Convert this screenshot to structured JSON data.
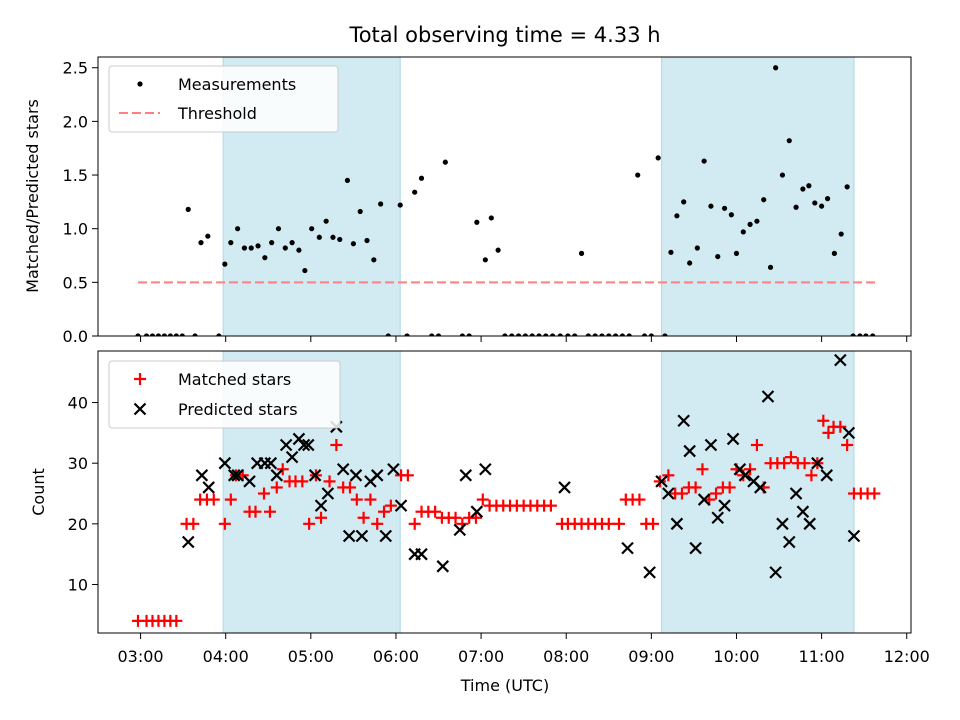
{
  "title": "Total observing time = 4.33 h",
  "x_axis": {
    "label": "Time (UTC)",
    "range_hours": [
      2.5,
      12.05
    ],
    "ticks": [
      {
        "v": 3,
        "label": "03:00"
      },
      {
        "v": 4,
        "label": "04:00"
      },
      {
        "v": 5,
        "label": "05:00"
      },
      {
        "v": 6,
        "label": "06:00"
      },
      {
        "v": 7,
        "label": "07:00"
      },
      {
        "v": 8,
        "label": "08:00"
      },
      {
        "v": 9,
        "label": "09:00"
      },
      {
        "v": 10,
        "label": "10:00"
      },
      {
        "v": 11,
        "label": "11:00"
      },
      {
        "v": 12,
        "label": "12:00"
      }
    ]
  },
  "shaded_intervals_hours": [
    [
      3.97,
      6.05
    ],
    [
      9.12,
      11.38
    ]
  ],
  "colors": {
    "shade": "#add8e6",
    "threshold": "#ff8080",
    "measurement": "#000000",
    "matched": "#ff0000",
    "predicted": "#000000"
  },
  "chart_data": [
    {
      "type": "scatter",
      "panel": "top",
      "ylabel": "Matched/Predicted stars",
      "ylim": [
        0,
        2.6
      ],
      "yticks": [
        {
          "v": 0,
          "label": "0.0"
        },
        {
          "v": 0.5,
          "label": "0.5"
        },
        {
          "v": 1,
          "label": "1.0"
        },
        {
          "v": 1.5,
          "label": "1.5"
        },
        {
          "v": 2,
          "label": "2.0"
        },
        {
          "v": 2.5,
          "label": "2.5"
        }
      ],
      "legend": {
        "position": "upper-left",
        "measurements_label": "Measurements",
        "threshold_label": "Threshold"
      },
      "threshold": {
        "value": 0.5,
        "x_range_hours": [
          2.97,
          11.65
        ]
      },
      "measurements": {
        "x": [
          2.97,
          3.07,
          3.14,
          3.21,
          3.28,
          3.35,
          3.42,
          3.49,
          3.56,
          3.64,
          3.71,
          3.79,
          3.92,
          3.99,
          4.06,
          4.14,
          4.22,
          4.3,
          4.38,
          4.46,
          4.54,
          4.62,
          4.7,
          4.78,
          4.86,
          4.93,
          5.01,
          5.1,
          5.18,
          5.26,
          5.34,
          5.43,
          5.5,
          5.58,
          5.66,
          5.74,
          5.82,
          5.91,
          6.05,
          6.13,
          6.22,
          6.3,
          6.42,
          6.5,
          6.58,
          6.78,
          6.86,
          6.95,
          7.05,
          7.12,
          7.2,
          7.28,
          7.36,
          7.44,
          7.52,
          7.6,
          7.68,
          7.76,
          7.84,
          7.93,
          8.02,
          8.1,
          8.18,
          8.26,
          8.34,
          8.42,
          8.5,
          8.58,
          8.66,
          8.74,
          8.84,
          8.92,
          9.0,
          9.08,
          9.16,
          9.23,
          9.3,
          9.38,
          9.45,
          9.54,
          9.62,
          9.7,
          9.78,
          9.86,
          9.94,
          10.0,
          10.08,
          10.16,
          10.24,
          10.32,
          10.4,
          10.46,
          10.54,
          10.62,
          10.7,
          10.78,
          10.85,
          10.92,
          11.0,
          11.07,
          11.15,
          11.23,
          11.3,
          11.37,
          11.45,
          11.52,
          11.6
        ],
        "y": [
          0,
          0,
          0,
          0,
          0,
          0,
          0,
          0,
          1.18,
          0,
          0.87,
          0.93,
          0,
          0.67,
          0.87,
          1.0,
          0.82,
          0.82,
          0.84,
          0.73,
          0.87,
          1.0,
          0.82,
          0.87,
          0.8,
          0.61,
          1.0,
          0.92,
          1.07,
          0.92,
          0.9,
          1.45,
          0.86,
          1.16,
          0.89,
          0.71,
          1.23,
          0,
          1.22,
          0,
          1.34,
          1.47,
          0,
          0,
          1.62,
          0,
          0,
          1.06,
          0.71,
          1.1,
          0.8,
          0,
          0,
          0,
          0,
          0,
          0,
          0,
          0,
          0,
          0,
          0,
          0.77,
          0,
          0,
          0,
          0,
          0,
          0,
          0,
          1.5,
          0,
          0,
          1.66,
          0,
          0.78,
          1.12,
          1.25,
          0.68,
          0.82,
          1.63,
          1.21,
          0.74,
          1.19,
          1.13,
          0.77,
          0.97,
          1.04,
          1.07,
          1.27,
          0.64,
          2.5,
          1.5,
          1.82,
          1.2,
          1.37,
          1.4,
          1.24,
          1.21,
          1.28,
          0.77,
          0.95,
          1.39,
          0,
          0,
          0,
          0
        ]
      }
    },
    {
      "type": "scatter",
      "panel": "bottom",
      "ylabel": "Count",
      "ylim": [
        2,
        48.5
      ],
      "yticks": [
        {
          "v": 10,
          "label": "10"
        },
        {
          "v": 20,
          "label": "20"
        },
        {
          "v": 30,
          "label": "30"
        },
        {
          "v": 40,
          "label": "40"
        }
      ],
      "legend": {
        "position": "upper-left"
      },
      "series": [
        {
          "name": "Matched stars",
          "marker": "plus",
          "x": [
            2.97,
            3.07,
            3.14,
            3.21,
            3.28,
            3.35,
            3.42,
            3.54,
            3.62,
            3.7,
            3.78,
            3.86,
            3.99,
            4.06,
            4.12,
            4.2,
            4.28,
            4.35,
            4.45,
            4.52,
            4.6,
            4.67,
            4.75,
            4.82,
            4.9,
            4.98,
            5.06,
            5.12,
            5.22,
            5.3,
            5.38,
            5.46,
            5.54,
            5.62,
            5.7,
            5.78,
            5.86,
            5.94,
            6.06,
            6.14,
            6.22,
            6.3,
            6.38,
            6.46,
            6.54,
            6.62,
            6.7,
            6.78,
            6.86,
            6.94,
            7.02,
            7.1,
            7.18,
            7.26,
            7.34,
            7.42,
            7.5,
            7.58,
            7.66,
            7.74,
            7.82,
            7.95,
            8.02,
            8.1,
            8.18,
            8.26,
            8.34,
            8.42,
            8.5,
            8.62,
            8.7,
            8.78,
            8.86,
            8.94,
            9.02,
            9.1,
            9.2,
            9.28,
            9.36,
            9.44,
            9.52,
            9.6,
            9.68,
            9.76,
            9.84,
            9.92,
            10.0,
            10.08,
            10.16,
            10.24,
            10.32,
            10.4,
            10.48,
            10.56,
            10.64,
            10.72,
            10.8,
            10.88,
            10.95,
            11.02,
            11.08,
            11.14,
            11.22,
            11.3,
            11.38,
            11.46,
            11.54,
            11.62
          ],
          "y": [
            4,
            4,
            4,
            4,
            4,
            4,
            4,
            20,
            20,
            24,
            24,
            24,
            20,
            24,
            28,
            28,
            22,
            22,
            25,
            22,
            26,
            29,
            27,
            27,
            27,
            20,
            28,
            21,
            27,
            33,
            26,
            26,
            24,
            21,
            24,
            20,
            22,
            23,
            28,
            28,
            20,
            22,
            22,
            22,
            21,
            21,
            21,
            20,
            21,
            21,
            24,
            23,
            23,
            23,
            23,
            23,
            23,
            23,
            23,
            23,
            23,
            20,
            20,
            20,
            20,
            20,
            20,
            20,
            20,
            20,
            24,
            24,
            24,
            20,
            20,
            27,
            28,
            25,
            25,
            26,
            26,
            29,
            24,
            25,
            26,
            26,
            29,
            28,
            29,
            33,
            26,
            30,
            30,
            30,
            31,
            30,
            30,
            28,
            30,
            37,
            35,
            36,
            36,
            33,
            25,
            25,
            25,
            25
          ]
        },
        {
          "name": "Predicted stars",
          "marker": "x",
          "x": [
            3.56,
            3.72,
            3.8,
            3.99,
            4.1,
            4.14,
            4.28,
            4.37,
            4.46,
            4.53,
            4.6,
            4.71,
            4.78,
            4.86,
            4.92,
            4.97,
            5.05,
            5.12,
            5.2,
            5.3,
            5.38,
            5.45,
            5.53,
            5.6,
            5.7,
            5.78,
            5.88,
            5.97,
            6.06,
            6.22,
            6.3,
            6.55,
            6.75,
            6.82,
            6.95,
            7.05,
            7.98,
            8.72,
            8.98,
            9.12,
            9.2,
            9.3,
            9.38,
            9.45,
            9.52,
            9.62,
            9.7,
            9.78,
            9.86,
            9.96,
            10.04,
            10.1,
            10.2,
            10.28,
            10.37,
            10.46,
            10.54,
            10.62,
            10.7,
            10.78,
            10.86,
            10.95,
            11.06,
            11.22,
            11.32,
            11.38
          ],
          "y": [
            17,
            28,
            26,
            30,
            28,
            28,
            27,
            30,
            30,
            30,
            28,
            33,
            31,
            34,
            33,
            33,
            28,
            23,
            25,
            36,
            29,
            18,
            28,
            18,
            27,
            28,
            18,
            29,
            23,
            15,
            15,
            13,
            19,
            28,
            22,
            29,
            26,
            16,
            12,
            27,
            25,
            20,
            37,
            32,
            16,
            24,
            33,
            21,
            23,
            34,
            29,
            28,
            27,
            26,
            41,
            12,
            20,
            17,
            25,
            22,
            20,
            30,
            28,
            47,
            35,
            18
          ]
        }
      ]
    }
  ]
}
